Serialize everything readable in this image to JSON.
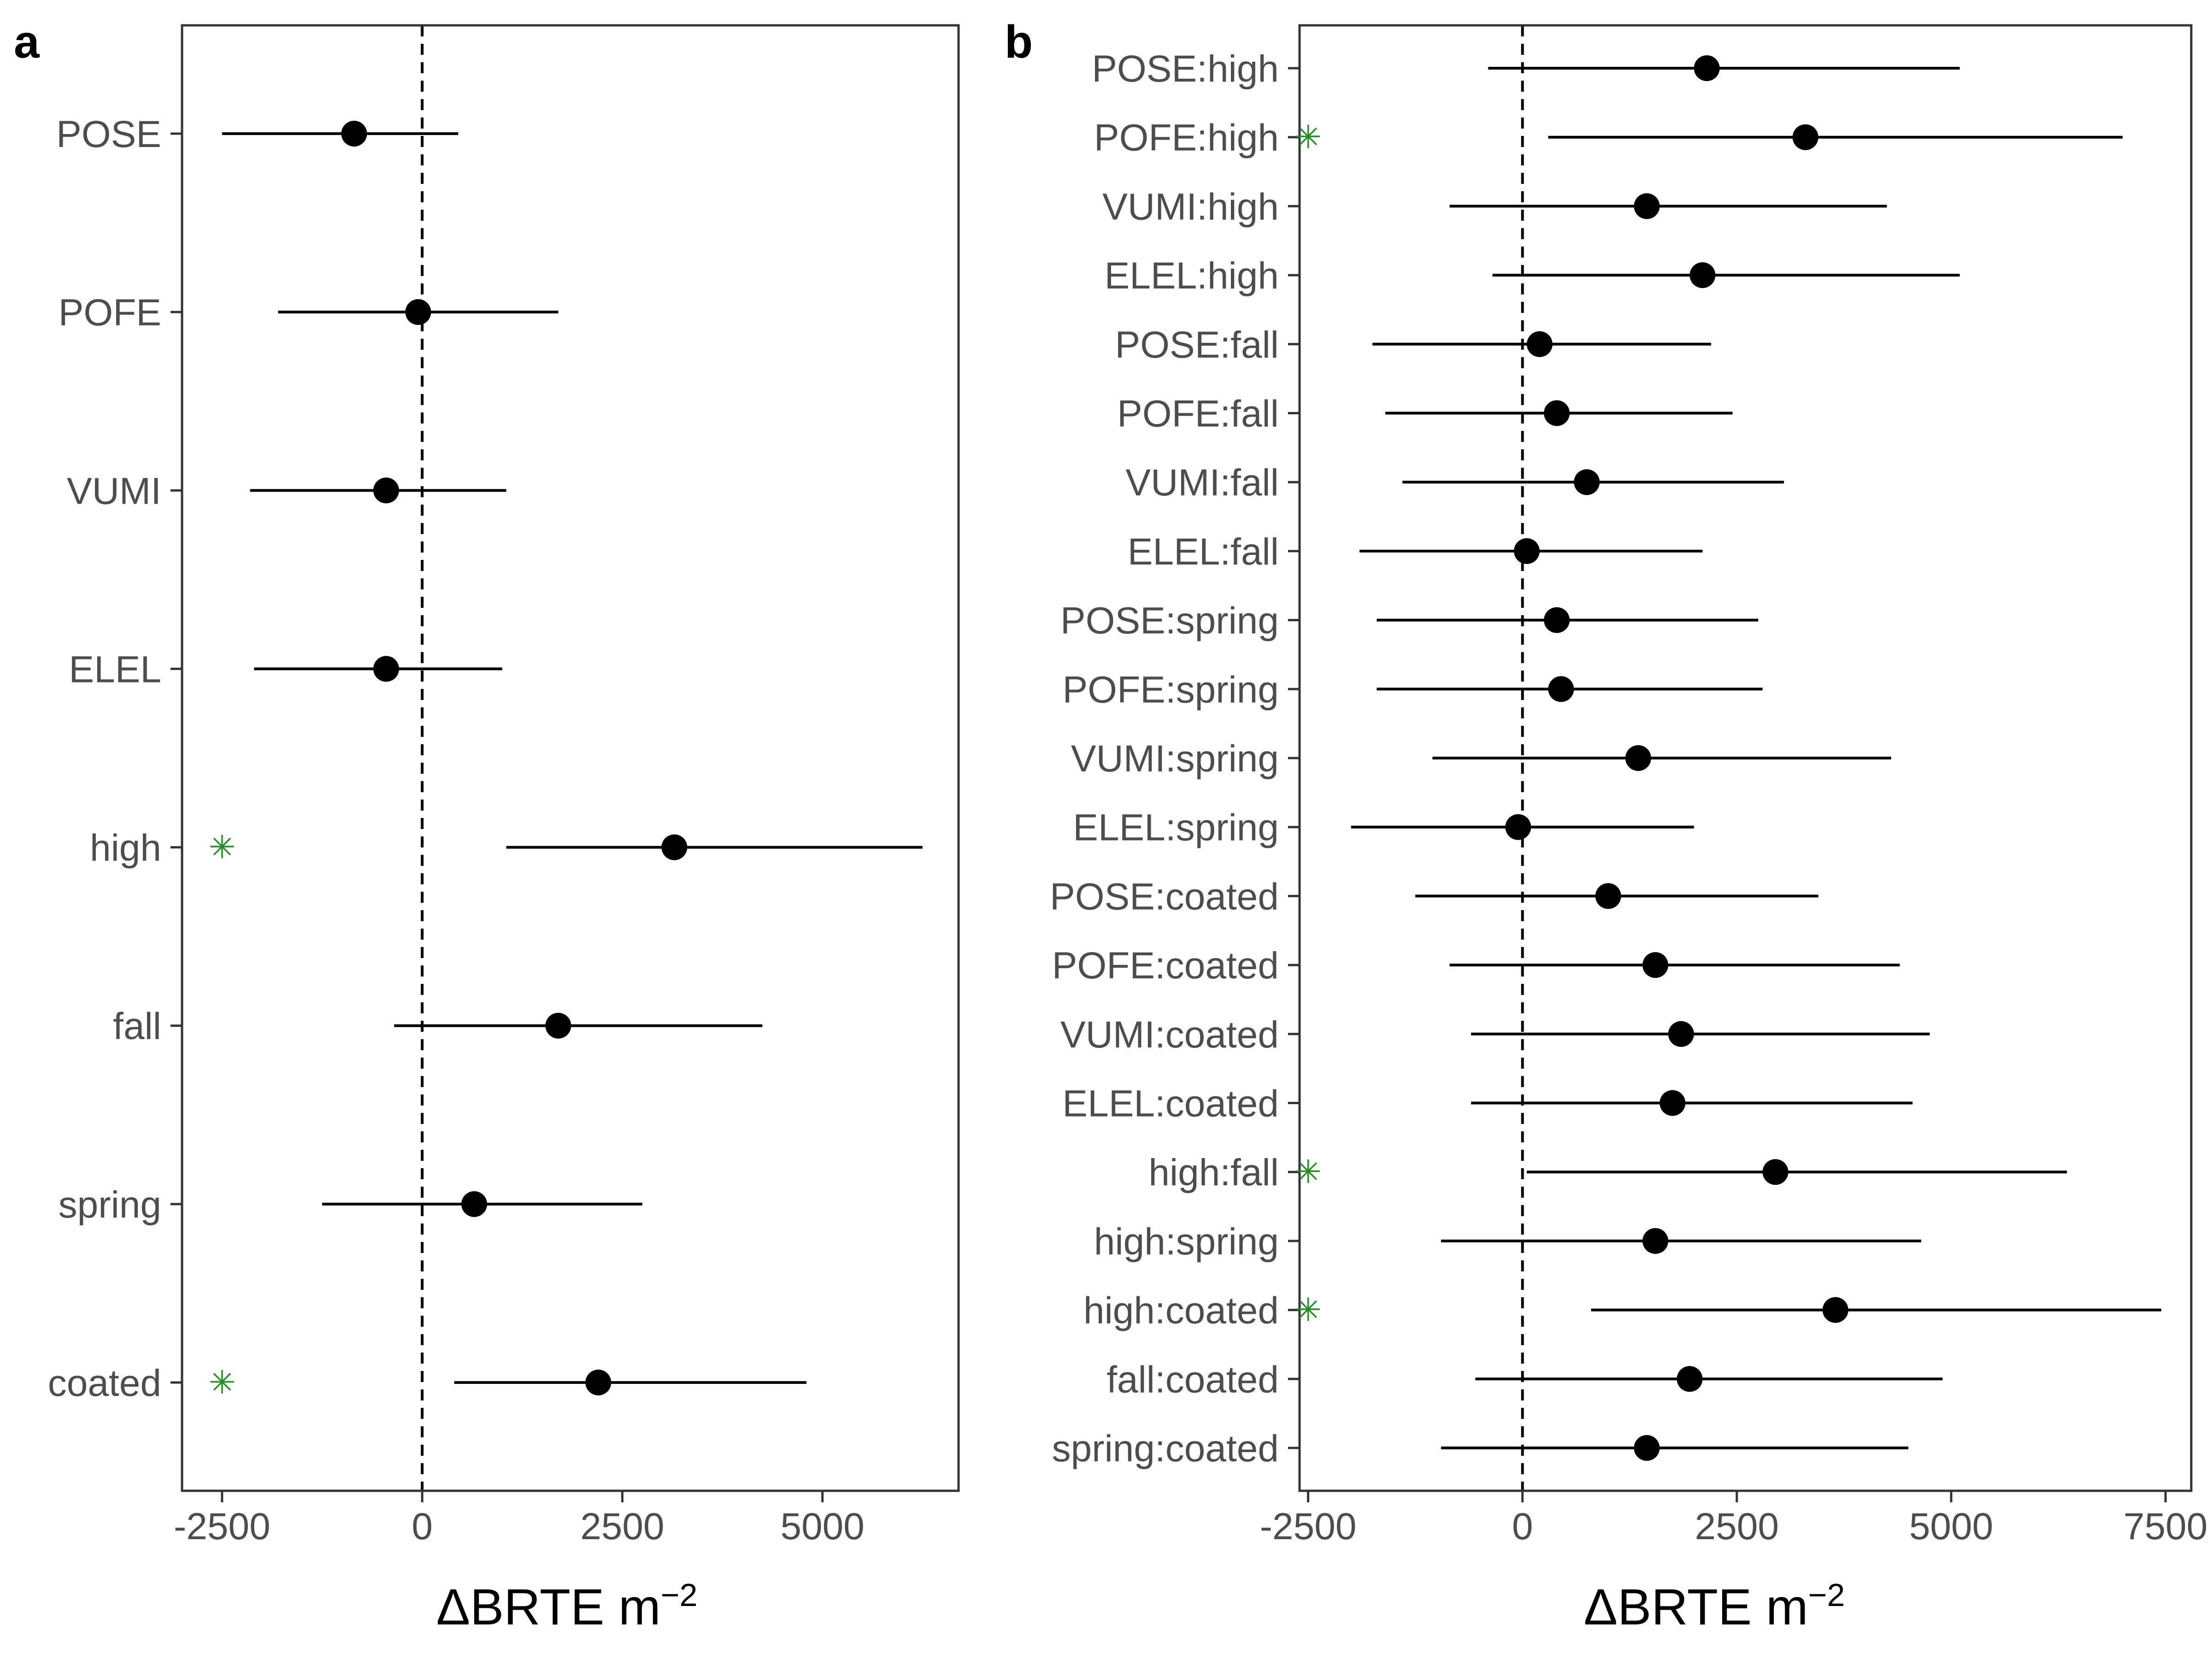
{
  "colors": {
    "point": "#000000",
    "axis": "#333333",
    "tick_text": "#4d4d4d",
    "significance": "#1f8f1f"
  },
  "significance_marker": "✳",
  "chart_data": [
    {
      "type": "scatter",
      "panel_label": "a",
      "xlabel_main": "ΔBRTE m",
      "xlabel_sup": "−2",
      "xlim": [
        -3000,
        6700
      ],
      "xticks": [
        -2500,
        0,
        2500,
        5000
      ],
      "xtick_labels": [
        "-2500",
        "0",
        "2500",
        "5000"
      ],
      "reference_line": 0,
      "categories": [
        "POSE",
        "POFE",
        "VUMI",
        "ELEL",
        "high",
        "fall",
        "spring",
        "coated"
      ],
      "estimate": [
        -850,
        -50,
        -450,
        -450,
        3150,
        1700,
        650,
        2200
      ],
      "lower": [
        -2500,
        -1800,
        -2150,
        -2100,
        1050,
        -350,
        -1250,
        400
      ],
      "upper": [
        450,
        1700,
        1050,
        1000,
        6250,
        4250,
        2750,
        4800
      ],
      "significant": [
        false,
        false,
        false,
        false,
        true,
        false,
        false,
        true
      ]
    },
    {
      "type": "scatter",
      "panel_label": "b",
      "xlabel_main": "ΔBRTE m",
      "xlabel_sup": "−2",
      "xlim": [
        -2600,
        7800
      ],
      "xticks": [
        -2500,
        0,
        2500,
        5000,
        7500
      ],
      "xtick_labels": [
        "-2500",
        "0",
        "2500",
        "5000",
        "7500"
      ],
      "reference_line": 0,
      "categories": [
        "POSE:high",
        "POFE:high",
        "VUMI:high",
        "ELEL:high",
        "POSE:fall",
        "POFE:fall",
        "VUMI:fall",
        "ELEL:fall",
        "POSE:spring",
        "POFE:spring",
        "VUMI:spring",
        "ELEL:spring",
        "POSE:coated",
        "POFE:coated",
        "VUMI:coated",
        "ELEL:coated",
        "high:fall",
        "high:spring",
        "high:coated",
        "fall:coated",
        "spring:coated"
      ],
      "estimate": [
        2150,
        3300,
        1450,
        2100,
        200,
        400,
        750,
        50,
        400,
        450,
        1350,
        -50,
        1000,
        1550,
        1850,
        1750,
        2950,
        1550,
        3650,
        1950,
        1450
      ],
      "lower": [
        -400,
        300,
        -850,
        -350,
        -1750,
        -1600,
        -1400,
        -1900,
        -1700,
        -1700,
        -1050,
        -2000,
        -1250,
        -850,
        -600,
        -600,
        50,
        -950,
        800,
        -550,
        -950
      ],
      "upper": [
        5100,
        7000,
        4250,
        5100,
        2200,
        2450,
        3050,
        2100,
        2750,
        2800,
        4300,
        2000,
        3450,
        4400,
        4750,
        4550,
        6350,
        4650,
        7450,
        4900,
        4500
      ],
      "significant": [
        false,
        true,
        false,
        false,
        false,
        false,
        false,
        false,
        false,
        false,
        false,
        false,
        false,
        false,
        false,
        false,
        true,
        false,
        true,
        false,
        false
      ]
    }
  ]
}
